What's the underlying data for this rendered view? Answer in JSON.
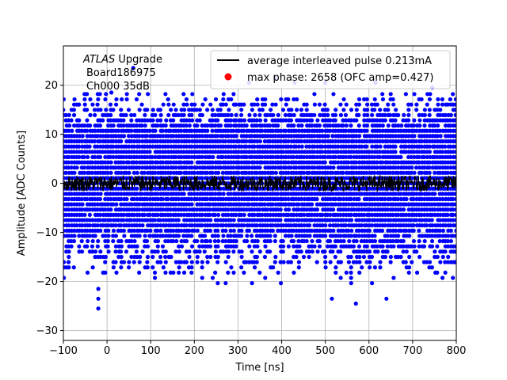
{
  "chart_data": {
    "type": "scatter",
    "xlabel": "Time [ns]",
    "ylabel": "Amplitude [ADC Counts]",
    "xlim": [
      -100,
      800
    ],
    "ylim": [
      -32,
      28
    ],
    "xticks": [
      -100,
      0,
      100,
      200,
      300,
      400,
      500,
      600,
      700,
      800
    ],
    "yticks": [
      -30,
      -20,
      -10,
      0,
      10,
      20
    ],
    "grid": true,
    "annotation": {
      "italic": "ATLAS",
      "rest": " Upgrade",
      "line2": "Board186975",
      "line3": "Ch000 35dB"
    },
    "legend": {
      "placement": "top-right",
      "entries": [
        {
          "label": "average interleaved pulse 0.213mA",
          "marker": "line",
          "color": "#000000"
        },
        {
          "label": "max phase: 2658 (OFC amp=0.427)",
          "marker": "circle",
          "color": "#ff0000"
        }
      ]
    },
    "series": [
      {
        "name": "average interleaved pulse 0.213mA",
        "kind": "line",
        "color": "#000000",
        "x_range": [
          -100,
          800
        ],
        "mean": 0,
        "spread": 1.6
      },
      {
        "name": "max phase: 2658 (OFC amp=0.427)",
        "kind": "points",
        "color": "#0000ff",
        "x_range": [
          -100,
          800
        ],
        "y_levels_step": 1.07,
        "core_range": [
          -9,
          11
        ],
        "sparse_range": [
          -20,
          18
        ],
        "outliers": [
          {
            "x": -20,
            "y": -21.5
          },
          {
            "x": -20,
            "y": -23.5
          },
          {
            "x": -20,
            "y": -25.5
          },
          {
            "x": 515,
            "y": -23.5
          },
          {
            "x": 570,
            "y": -24.5
          },
          {
            "x": 640,
            "y": -23.5
          },
          {
            "x": 60,
            "y": 23.5
          },
          {
            "x": 10,
            "y": 18.5
          },
          {
            "x": 325,
            "y": 20.5
          },
          {
            "x": 385,
            "y": 21.5
          },
          {
            "x": 430,
            "y": 20.5
          },
          {
            "x": 500,
            "y": 20.5
          },
          {
            "x": 615,
            "y": 20.5
          },
          {
            "x": 745,
            "y": 19.5
          }
        ]
      }
    ]
  },
  "style": {
    "scatter_color": "#0000ff",
    "pulse_color": "#000000",
    "legend_marker_color": "#ff0000",
    "grid_color": "#b0b0b0"
  }
}
